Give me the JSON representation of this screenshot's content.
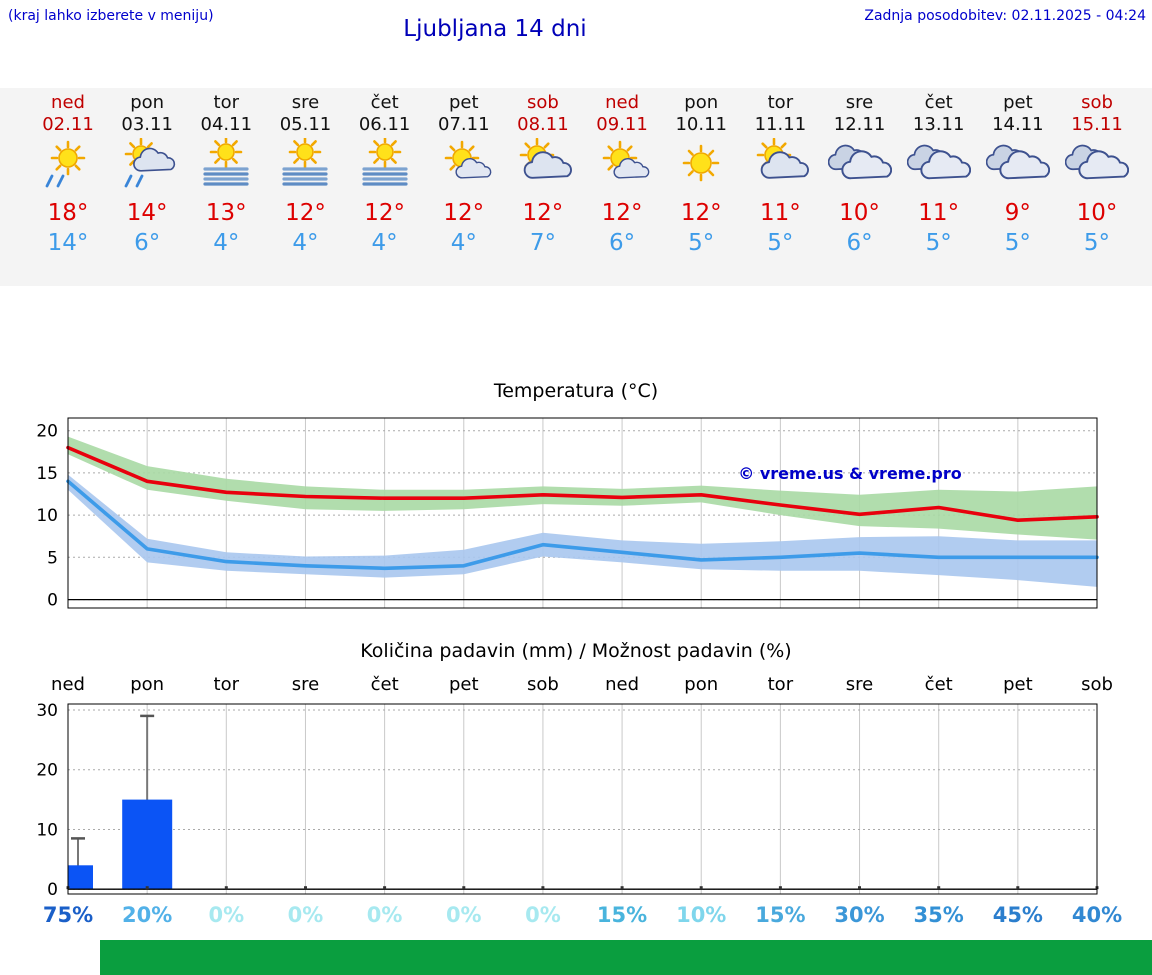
{
  "header": {
    "hint": "(kraj lahko izberete v meniju)",
    "title": "Ljubljana 14 dni",
    "last_update": "Zadnja posodobitev: 02.11.2025 - 04:24"
  },
  "accent_colors": {
    "link_blue": "#0000cc",
    "tmax_red": "#dd0000",
    "tmin_blue": "#3d9be9",
    "weekend_red": "#c00000",
    "banner_green": "#0a9e3f"
  },
  "days": [
    {
      "name": "ned",
      "date": "02.11",
      "red": true,
      "icon": "sun-rain",
      "tmax": "18°",
      "tmin": "14°",
      "pct": "75%",
      "pct_color": "#1a5fc8"
    },
    {
      "name": "pon",
      "date": "03.11",
      "red": false,
      "icon": "sun-cloud-rain",
      "tmax": "14°",
      "tmin": "6°",
      "pct": "20%",
      "pct_color": "#52b1e8"
    },
    {
      "name": "tor",
      "date": "04.11",
      "red": false,
      "icon": "fog-sun",
      "tmax": "13°",
      "tmin": "4°",
      "pct": "0%",
      "pct_color": "#a7e9f0"
    },
    {
      "name": "sre",
      "date": "05.11",
      "red": false,
      "icon": "fog-sun",
      "tmax": "12°",
      "tmin": "4°",
      "pct": "0%",
      "pct_color": "#a7e9f0"
    },
    {
      "name": "čet",
      "date": "06.11",
      "red": false,
      "icon": "fog-sun",
      "tmax": "12°",
      "tmin": "4°",
      "pct": "0%",
      "pct_color": "#a7e9f0"
    },
    {
      "name": "pet",
      "date": "07.11",
      "red": false,
      "icon": "sun-small-cloud",
      "tmax": "12°",
      "tmin": "4°",
      "pct": "0%",
      "pct_color": "#a7e9f0"
    },
    {
      "name": "sob",
      "date": "08.11",
      "red": true,
      "icon": "sun-cloud",
      "tmax": "12°",
      "tmin": "7°",
      "pct": "0%",
      "pct_color": "#a7e9f0"
    },
    {
      "name": "ned",
      "date": "09.11",
      "red": true,
      "icon": "sun-small-cloud",
      "tmax": "12°",
      "tmin": "6°",
      "pct": "15%",
      "pct_color": "#49b4dd"
    },
    {
      "name": "pon",
      "date": "10.11",
      "red": false,
      "icon": "sun",
      "tmax": "12°",
      "tmin": "5°",
      "pct": "10%",
      "pct_color": "#7fd6ec"
    },
    {
      "name": "tor",
      "date": "11.11",
      "red": false,
      "icon": "sun-cloud",
      "tmax": "11°",
      "tmin": "5°",
      "pct": "15%",
      "pct_color": "#49a9dd"
    },
    {
      "name": "sre",
      "date": "12.11",
      "red": false,
      "icon": "cloudy",
      "tmax": "10°",
      "tmin": "6°",
      "pct": "30%",
      "pct_color": "#3b97d8"
    },
    {
      "name": "čet",
      "date": "13.11",
      "red": false,
      "icon": "cloudy",
      "tmax": "11°",
      "tmin": "5°",
      "pct": "35%",
      "pct_color": "#3390d5"
    },
    {
      "name": "pet",
      "date": "14.11",
      "red": false,
      "icon": "cloudy",
      "tmax": "9°",
      "tmin": "5°",
      "pct": "45%",
      "pct_color": "#2b7ecd"
    },
    {
      "name": "sob",
      "date": "15.11",
      "red": true,
      "icon": "cloudy",
      "tmax": "10°",
      "tmin": "5°",
      "pct": "40%",
      "pct_color": "#3188d2"
    }
  ],
  "chart_data": [
    {
      "type": "line",
      "title": "Temperatura (°C)",
      "categories": [
        "02.11",
        "03.11",
        "04.11",
        "05.11",
        "06.11",
        "07.11",
        "08.11",
        "09.11",
        "10.11",
        "11.11",
        "12.11",
        "13.11",
        "14.11",
        "15.11"
      ],
      "ylim": [
        -1,
        21.5
      ],
      "yticks": [
        0,
        5,
        10,
        15,
        20
      ],
      "watermark": "© vreme.us & vreme.pro",
      "series": [
        {
          "name": "tmax",
          "color": "#e8000d",
          "values": [
            18,
            14,
            12.7,
            12.2,
            12,
            12,
            12.4,
            12.1,
            12.4,
            11.2,
            10.1,
            10.9,
            9.4,
            9.8
          ]
        },
        {
          "name": "tmin",
          "color": "#3d9be9",
          "values": [
            14,
            6,
            4.5,
            4,
            3.7,
            4,
            6.5,
            5.6,
            4.7,
            5,
            5.5,
            5,
            5,
            5
          ]
        },
        {
          "name": "tmax_range_upper",
          "color": "#a8d9a4",
          "values": [
            19.3,
            15.8,
            14.3,
            13.4,
            13,
            13,
            13.4,
            13.1,
            13.5,
            12.9,
            12.4,
            13,
            12.8,
            13.4
          ]
        },
        {
          "name": "tmax_range_lower",
          "color": "#a8d9a4",
          "values": [
            17.2,
            13,
            11.7,
            10.7,
            10.5,
            10.7,
            11.3,
            11.1,
            11.5,
            10,
            8.7,
            8.4,
            7.7,
            7.1
          ]
        },
        {
          "name": "tmin_range_upper",
          "color": "#a9c7ee",
          "values": [
            14.8,
            7.2,
            5.6,
            5.1,
            5.2,
            5.9,
            7.9,
            7,
            6.6,
            6.9,
            7.4,
            7.5,
            7,
            7
          ]
        },
        {
          "name": "tmin_range_lower",
          "color": "#a9c7ee",
          "values": [
            13,
            4.4,
            3.4,
            3,
            2.6,
            3,
            5.1,
            4.4,
            3.6,
            3.4,
            3.4,
            2.9,
            2.3,
            1.5
          ]
        }
      ],
      "band_colors": {
        "tmax_band": "#a8d9a4",
        "tmin_band": "#a9c7ee"
      },
      "grid": true,
      "legend": "none"
    },
    {
      "type": "bar",
      "title": "Količina padavin (mm) / Možnost padavin (%)",
      "categories": [
        "ned",
        "pon",
        "tor",
        "sre",
        "čet",
        "pet",
        "sob",
        "ned",
        "pon",
        "tor",
        "sre",
        "čet",
        "pet",
        "sob"
      ],
      "ylim": [
        -0.8,
        31
      ],
      "yticks": [
        0,
        10,
        20,
        30
      ],
      "values_mm": [
        4,
        15,
        0,
        0,
        0,
        0,
        0,
        0,
        0,
        0,
        0,
        0,
        0,
        0
      ],
      "whisker_max_mm": [
        8.5,
        29,
        0,
        0,
        0,
        0,
        0,
        0,
        0,
        0,
        0,
        0,
        0,
        0
      ],
      "probability_pct": [
        75,
        20,
        0,
        0,
        0,
        0,
        0,
        15,
        10,
        15,
        30,
        35,
        45,
        40
      ],
      "bar_color": "#0b54f5",
      "grid": true,
      "legend": "none"
    }
  ]
}
